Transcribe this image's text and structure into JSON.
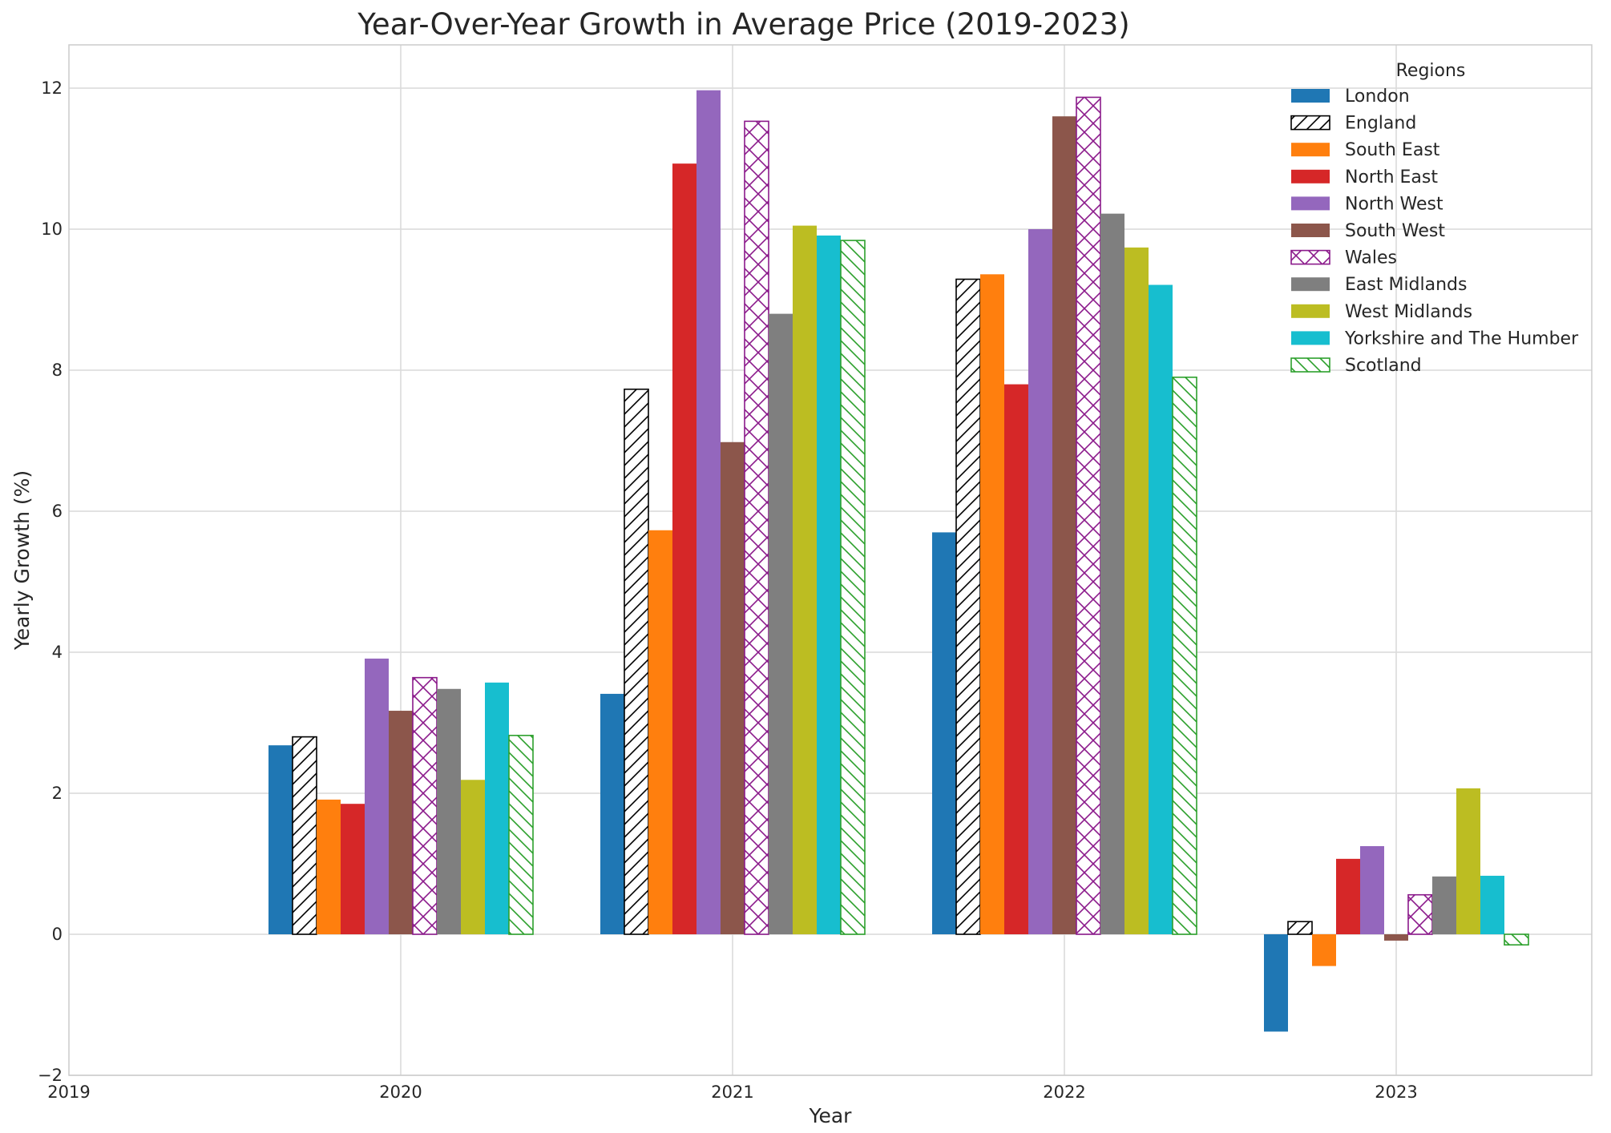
{
  "chart_data": {
    "type": "bar",
    "title": "Year-Over-Year Growth in Average Price (2019-2023)",
    "xlabel": "Year",
    "ylabel": "Yearly Growth (%)",
    "x_ticks": [
      "2019",
      "2020",
      "2021",
      "2022",
      "2023"
    ],
    "y_ticks": [
      "−2",
      "0",
      "2",
      "4",
      "6",
      "8",
      "10",
      "12"
    ],
    "ylim": [
      -2,
      12.6
    ],
    "categories": [
      "2020",
      "2021",
      "2022",
      "2023"
    ],
    "grid": true,
    "legend": {
      "title": "Regions",
      "placement": "top-right"
    },
    "series": [
      {
        "name": "London",
        "color": "#1f77b4",
        "hatch": "none",
        "values": [
          2.68,
          3.41,
          5.7,
          -1.38
        ]
      },
      {
        "name": "England",
        "color": "#000000",
        "hatch": "forward",
        "values": [
          2.8,
          7.73,
          9.29,
          0.18
        ]
      },
      {
        "name": "South East",
        "color": "#ff7f0e",
        "hatch": "none",
        "values": [
          1.91,
          5.73,
          9.36,
          -0.45
        ]
      },
      {
        "name": "North East",
        "color": "#d62728",
        "hatch": "none",
        "values": [
          1.85,
          10.93,
          7.8,
          1.07
        ]
      },
      {
        "name": "North West",
        "color": "#9467bd",
        "hatch": "none",
        "values": [
          3.91,
          11.97,
          10.0,
          1.25
        ]
      },
      {
        "name": "South West",
        "color": "#8c564b",
        "hatch": "none",
        "values": [
          3.17,
          6.98,
          11.6,
          -0.09
        ]
      },
      {
        "name": "Wales",
        "color": "#8b1a8b",
        "hatch": "cross",
        "values": [
          3.64,
          11.53,
          11.87,
          0.56
        ]
      },
      {
        "name": "East Midlands",
        "color": "#7f7f7f",
        "hatch": "none",
        "values": [
          3.48,
          8.8,
          10.22,
          0.82
        ]
      },
      {
        "name": "West Midlands",
        "color": "#bcbd22",
        "hatch": "none",
        "values": [
          2.19,
          10.05,
          9.74,
          2.07
        ]
      },
      {
        "name": "Yorkshire and The Humber",
        "color": "#17becf",
        "hatch": "none",
        "values": [
          3.57,
          9.91,
          9.21,
          0.83
        ]
      },
      {
        "name": "Scotland",
        "color": "#2ca02c",
        "hatch": "back",
        "values": [
          2.82,
          9.84,
          7.9,
          -0.15
        ]
      }
    ]
  }
}
